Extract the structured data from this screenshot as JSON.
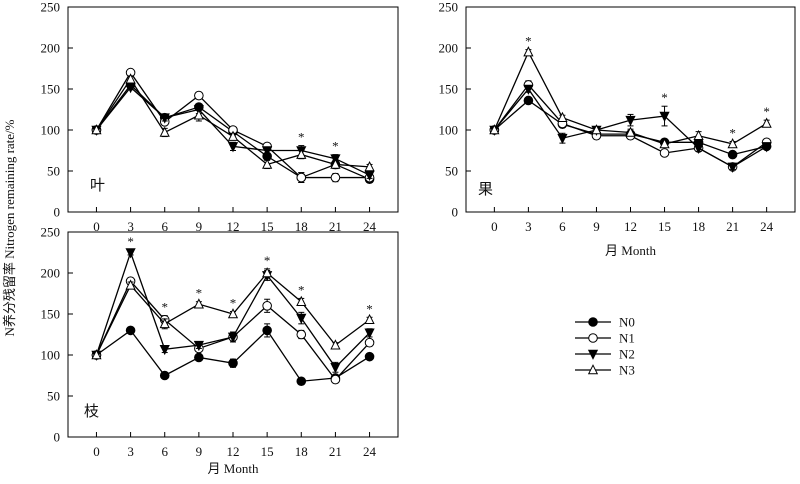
{
  "ylabel": "N养分残留率 Nitrogen remaining rate/%",
  "legend": [
    {
      "name": "N0",
      "marker": "filled-circle"
    },
    {
      "name": "N1",
      "marker": "open-circle"
    },
    {
      "name": "N2",
      "marker": "filled-triangle-down"
    },
    {
      "name": "N3",
      "marker": "open-triangle-up"
    }
  ],
  "chart_data": [
    {
      "type": "line",
      "panel": "叶",
      "x": [
        0,
        3,
        6,
        9,
        12,
        15,
        18,
        21,
        24
      ],
      "xticks": [
        0,
        3,
        6,
        9,
        12,
        15,
        18,
        21,
        24
      ],
      "xlabel": "",
      "ylim": [
        0,
        250
      ],
      "yticks": [
        0,
        50,
        100,
        150,
        200,
        250
      ],
      "series": [
        {
          "name": "N0",
          "values": [
            100,
            155,
            115,
            128,
            98,
            68,
            42,
            58,
            40
          ],
          "err": [
            0,
            3,
            4,
            3,
            3,
            4,
            6,
            5,
            4
          ]
        },
        {
          "name": "N1",
          "values": [
            100,
            170,
            110,
            142,
            100,
            80,
            42,
            42,
            42
          ],
          "err": [
            0,
            3,
            4,
            4,
            3,
            3,
            6,
            5,
            4
          ]
        },
        {
          "name": "N2",
          "values": [
            100,
            152,
            115,
            125,
            80,
            75,
            75,
            65,
            45
          ],
          "err": [
            0,
            3,
            4,
            5,
            5,
            4,
            6,
            5,
            4
          ]
        },
        {
          "name": "N3",
          "values": [
            100,
            162,
            97,
            118,
            92,
            58,
            70,
            58,
            55
          ],
          "err": [
            0,
            4,
            5,
            7,
            4,
            5,
            5,
            5,
            3
          ]
        }
      ],
      "markers": [
        {
          "x": 18,
          "text": "*"
        },
        {
          "x": 21,
          "text": "*"
        }
      ]
    },
    {
      "type": "line",
      "panel": "果",
      "x": [
        0,
        3,
        6,
        9,
        12,
        15,
        18,
        21,
        24
      ],
      "xticks": [
        0,
        3,
        6,
        9,
        12,
        15,
        18,
        21,
        24
      ],
      "xlabel": "月 Month",
      "ylim": [
        0,
        250
      ],
      "yticks": [
        0,
        50,
        100,
        150,
        200,
        250
      ],
      "series": [
        {
          "name": "N0",
          "values": [
            100,
            136,
            107,
            95,
            95,
            85,
            85,
            70,
            80
          ],
          "err": [
            0,
            3,
            3,
            3,
            3,
            3,
            3,
            3,
            3
          ]
        },
        {
          "name": "N1",
          "values": [
            100,
            155,
            108,
            93,
            93,
            72,
            78,
            55,
            85
          ],
          "err": [
            0,
            5,
            3,
            4,
            3,
            3,
            3,
            3,
            3
          ]
        },
        {
          "name": "N2",
          "values": [
            100,
            150,
            90,
            100,
            112,
            117,
            78,
            55,
            80
          ],
          "err": [
            0,
            4,
            6,
            4,
            7,
            12,
            4,
            3,
            3
          ]
        },
        {
          "name": "N3",
          "values": [
            100,
            195,
            115,
            100,
            97,
            83,
            93,
            83,
            108
          ],
          "err": [
            0,
            3,
            3,
            3,
            4,
            4,
            5,
            3,
            4
          ]
        }
      ],
      "markers": [
        {
          "x": 3,
          "text": "*"
        },
        {
          "x": 15,
          "text": "*"
        },
        {
          "x": 21,
          "text": "*"
        },
        {
          "x": 24,
          "text": "*"
        }
      ]
    },
    {
      "type": "line",
      "panel": "枝",
      "x": [
        0,
        3,
        6,
        9,
        12,
        15,
        18,
        21,
        24
      ],
      "xticks": [
        0,
        3,
        6,
        9,
        12,
        15,
        18,
        21,
        24
      ],
      "xlabel": "月 Month",
      "ylim": [
        0,
        250
      ],
      "yticks": [
        0,
        50,
        100,
        150,
        200,
        250
      ],
      "series": [
        {
          "name": "N0",
          "values": [
            100,
            130,
            75,
            97,
            90,
            130,
            68,
            72,
            98
          ],
          "err": [
            0,
            3,
            3,
            4,
            5,
            8,
            3,
            3,
            3
          ]
        },
        {
          "name": "N1",
          "values": [
            100,
            190,
            143,
            108,
            122,
            160,
            125,
            70,
            115
          ],
          "err": [
            0,
            4,
            5,
            4,
            6,
            8,
            5,
            4,
            3
          ]
        },
        {
          "name": "N2",
          "values": [
            100,
            225,
            107,
            112,
            122,
            197,
            145,
            85,
            127
          ],
          "err": [
            0,
            3,
            4,
            4,
            6,
            6,
            7,
            6,
            5
          ]
        },
        {
          "name": "N3",
          "values": [
            100,
            185,
            138,
            162,
            150,
            200,
            165,
            112,
            143
          ],
          "err": [
            0,
            4,
            6,
            3,
            3,
            5,
            4,
            3,
            3
          ]
        }
      ],
      "markers": [
        {
          "x": 3,
          "text": "*"
        },
        {
          "x": 6,
          "text": "*"
        },
        {
          "x": 9,
          "text": "*"
        },
        {
          "x": 12,
          "text": "*"
        },
        {
          "x": 15,
          "text": "*"
        },
        {
          "x": 18,
          "text": "*"
        },
        {
          "x": 24,
          "text": "*"
        }
      ]
    }
  ]
}
